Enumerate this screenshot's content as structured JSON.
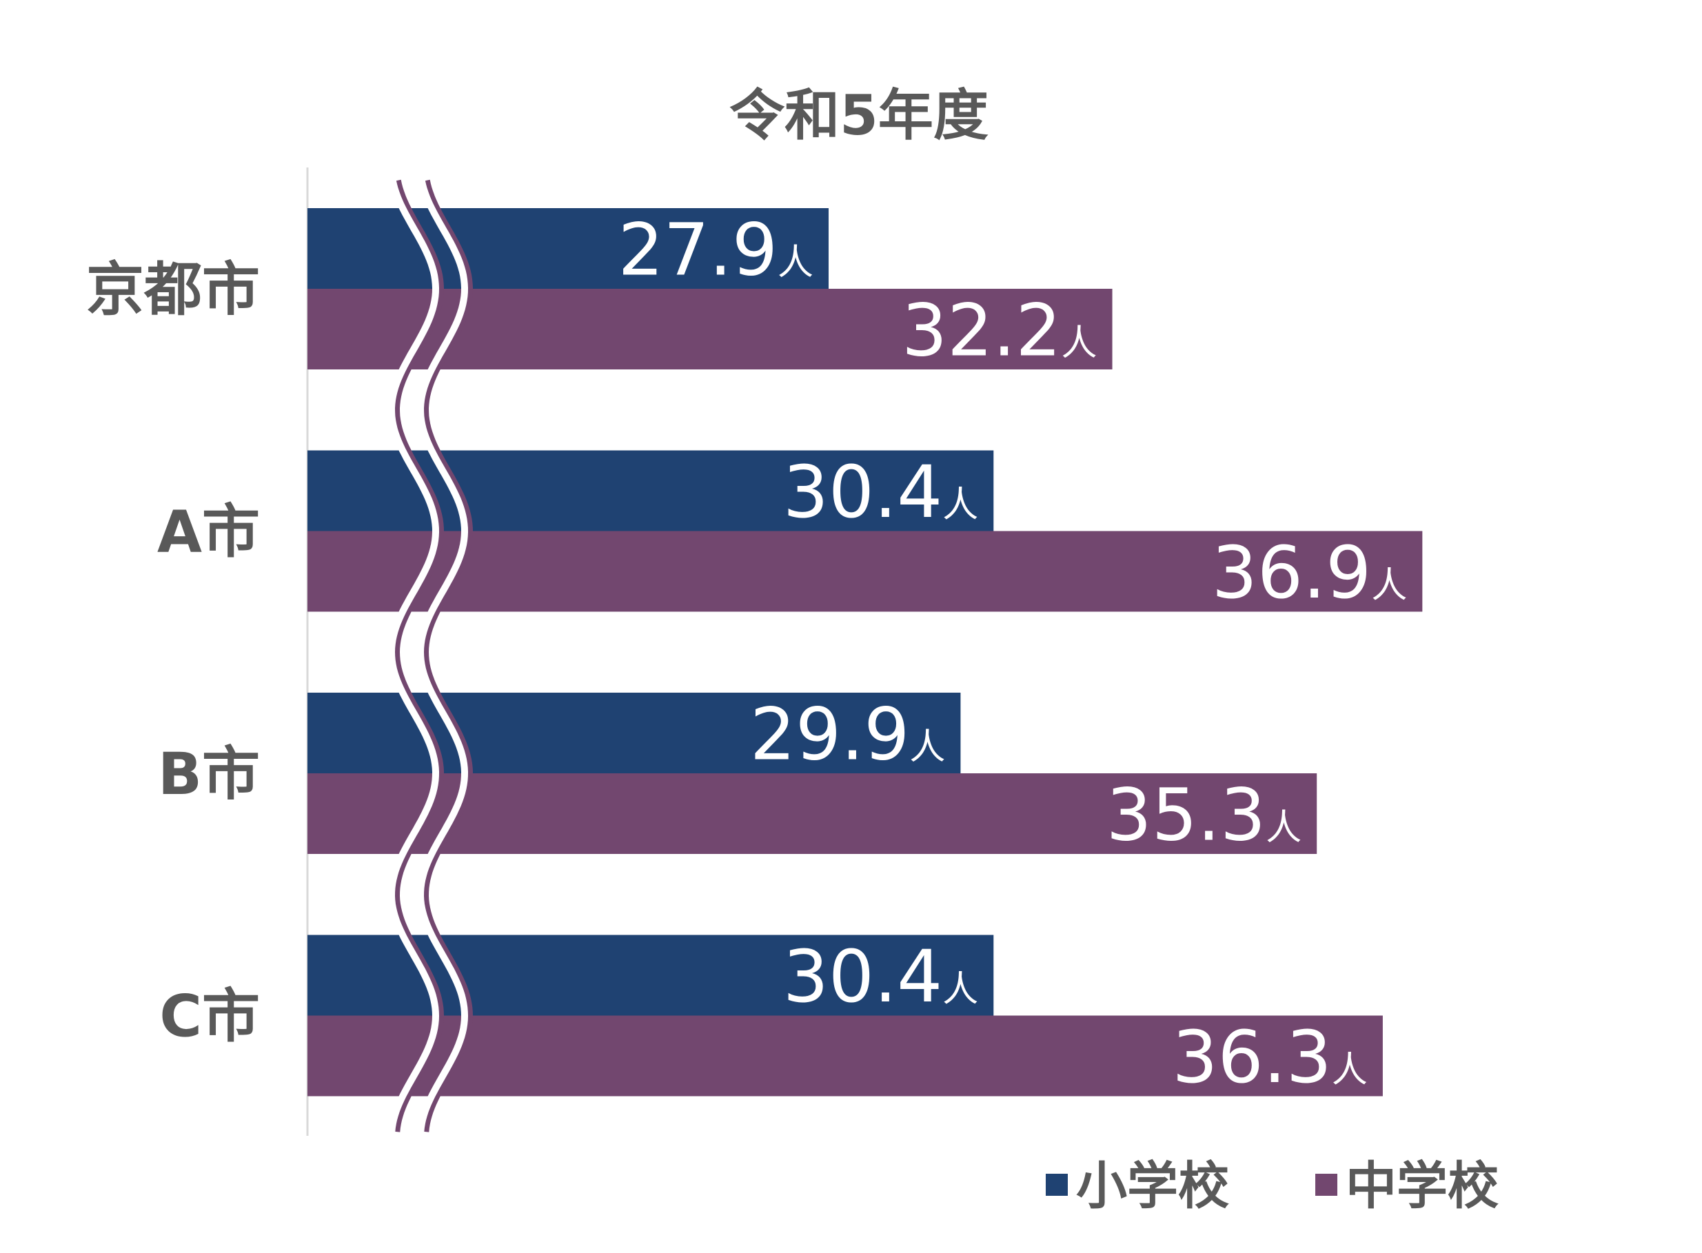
{
  "chart_data": {
    "type": "bar",
    "orientation": "horizontal",
    "title": "令和5年度",
    "categories": [
      "京都市",
      "A市",
      "B市",
      "C市"
    ],
    "series": [
      {
        "name": "小学校",
        "color": "#1F4272",
        "values": [
          27.9,
          30.4,
          29.9,
          30.4
        ]
      },
      {
        "name": "中学校",
        "color": "#72476F",
        "values": [
          32.2,
          36.9,
          35.3,
          36.3
        ]
      }
    ],
    "unit": "人",
    "xlim": [
      20,
      40
    ],
    "axis_break": true,
    "grid": false,
    "legend": "bottom-right",
    "xlabel": "",
    "ylabel": ""
  }
}
